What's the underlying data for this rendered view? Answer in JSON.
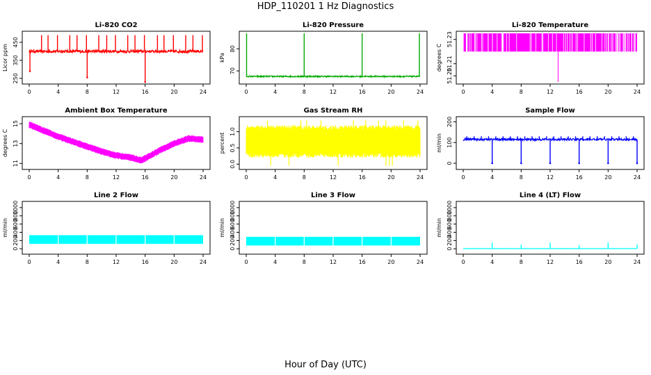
{
  "page": {
    "title": "HDP_110201  1 Hz Diagnostics",
    "xlabel": "Hour of Day (UTC)"
  },
  "chart_data": [
    {
      "type": "line",
      "title": "Li-820 CO2",
      "ylabel": "Licor ppm",
      "color": "#ff0000",
      "xticks": [
        0,
        4,
        8,
        12,
        16,
        20,
        24
      ],
      "xlim": [
        0,
        24
      ],
      "yticks": [
        250,
        350,
        450
      ],
      "ylim": [
        230,
        500
      ],
      "pattern": "baseline_with_spikes",
      "baseline": 400,
      "noise": 8,
      "spikes_up_at": [
        1.7,
        2.6,
        3.9,
        5.6,
        6.6,
        7.9,
        9.6,
        10.7,
        11.9,
        13.6,
        14.6,
        15.9,
        17.7,
        18.6,
        19.9,
        21.6,
        22.6,
        23.9
      ],
      "spikes_up_to": 490,
      "spikes_down_at": [
        0.1,
        8.0,
        16.0
      ],
      "spikes_down_to": [
        290,
        255,
        230
      ]
    },
    {
      "type": "line",
      "title": "Li-820 Pressure",
      "ylabel": "kPa",
      "color": "#00aa00",
      "xticks": [
        0,
        4,
        8,
        12,
        16,
        20,
        24
      ],
      "xlim": [
        0,
        24
      ],
      "yticks": [
        70,
        80
      ],
      "ylim": [
        65,
        87
      ],
      "pattern": "baseline_with_spikes",
      "baseline": 67.5,
      "noise": 0.3,
      "spikes_up_at": [
        0.05,
        8.0,
        16.0,
        23.9
      ],
      "spikes_up_to": 87,
      "spikes_down_at": [],
      "spikes_down_to": []
    },
    {
      "type": "line",
      "title": "Li-820 Temperature",
      "ylabel": "degrees C",
      "color": "#ff00ff",
      "xticks": [
        0,
        4,
        8,
        12,
        16,
        20,
        24
      ],
      "xlim": [
        0,
        24
      ],
      "yticks": [
        51.2,
        51.21,
        51.23
      ],
      "ytick_labels": [
        "51.20",
        "51.21",
        "51.23"
      ],
      "ylim": [
        51.195,
        51.235
      ],
      "pattern": "quantized_band",
      "band": [
        51.22,
        51.235
      ],
      "single_drop_at": 13.1,
      "single_drop_to": 51.195
    },
    {
      "type": "line",
      "title": "Ambient Box Temperature",
      "ylabel": "degrees C",
      "color": "#ff00ff",
      "xticks": [
        0,
        4,
        8,
        12,
        16,
        20,
        24
      ],
      "xlim": [
        0,
        24
      ],
      "yticks": [
        11,
        13,
        15
      ],
      "ylim": [
        10.6,
        15.5
      ],
      "pattern": "trend_band",
      "band_halfwidth": 0.35,
      "trend_x": [
        0,
        2,
        4,
        6,
        8,
        10,
        12,
        14,
        15.5,
        16,
        18,
        20,
        22,
        24
      ],
      "trend_y": [
        14.9,
        14.3,
        13.7,
        13.2,
        12.7,
        12.2,
        11.8,
        11.6,
        11.3,
        11.5,
        12.3,
        13.0,
        13.5,
        13.4
      ]
    },
    {
      "type": "line",
      "title": "Gas Stream RH",
      "ylabel": "percent",
      "color": "#ffff00",
      "xticks": [
        0,
        4,
        8,
        12,
        16,
        20,
        24
      ],
      "xlim": [
        0,
        24
      ],
      "yticks": [
        0.0,
        0.5,
        1.0
      ],
      "ytick_labels": [
        "0.0",
        "0.5",
        "1.0"
      ],
      "ylim": [
        -0.1,
        1.4
      ],
      "pattern": "noise_band",
      "band": [
        0.2,
        1.2
      ],
      "extreme": [
        -0.05,
        1.35
      ]
    },
    {
      "type": "line",
      "title": "Sample Flow",
      "ylabel": "ml/min",
      "color": "#0000ff",
      "xticks": [
        0,
        4,
        8,
        12,
        16,
        20,
        24
      ],
      "xlim": [
        0,
        24
      ],
      "yticks": [
        0,
        100,
        200
      ],
      "ylim": [
        -20,
        215
      ],
      "pattern": "baseline_with_spikes",
      "baseline": 115,
      "noise": 5,
      "spikes_up_at": [
        0.5,
        1.5,
        2.5,
        3.5,
        4.5,
        5.5,
        6.5,
        7.5,
        8.5,
        9.5,
        10.5,
        11.5,
        12.5,
        13.5,
        14.5,
        15.5,
        16.5,
        17.5,
        18.5,
        19.5,
        20.5,
        21.5,
        22.5,
        23.5
      ],
      "spikes_up_to": 130,
      "spikes_down_at": [
        4.0,
        8.0,
        12.0,
        16.0,
        20.0,
        24.0
      ],
      "spikes_down_to": [
        0,
        0,
        0,
        0,
        0,
        0
      ]
    },
    {
      "type": "line",
      "title": "Line 2 Flow",
      "ylabel": "ml/min",
      "color": "#00ffff",
      "xticks": [
        0,
        4,
        8,
        12,
        16,
        20,
        24
      ],
      "xlim": [
        0,
        24
      ],
      "yticks": [
        0,
        200,
        400,
        600,
        800,
        1000
      ],
      "ylim": [
        -80,
        1100
      ],
      "pattern": "block_band",
      "band": [
        120,
        330
      ],
      "gaps_at": [
        4.0,
        8.0,
        12.0,
        16.0,
        20.0
      ]
    },
    {
      "type": "line",
      "title": "Line 3 Flow",
      "ylabel": "ml/min",
      "color": "#00ffff",
      "xticks": [
        0,
        4,
        8,
        12,
        16,
        20,
        24
      ],
      "xlim": [
        0,
        24
      ],
      "yticks": [
        0,
        200,
        400,
        600,
        800,
        1000
      ],
      "ylim": [
        -80,
        1100
      ],
      "pattern": "block_band",
      "band": [
        80,
        290
      ],
      "gaps_at": [
        4.0,
        8.0,
        12.0,
        16.0,
        20.0
      ]
    },
    {
      "type": "line",
      "title": "Line 4 (LT) Flow",
      "ylabel": "ml/min",
      "color": "#00ffff",
      "xticks": [
        0,
        4,
        8,
        12,
        16,
        20,
        24
      ],
      "xlim": [
        0,
        24
      ],
      "yticks": [
        0,
        200,
        400,
        600,
        800,
        1000
      ],
      "ylim": [
        -80,
        1100
      ],
      "pattern": "baseline_with_spikes",
      "baseline": 5,
      "noise": 2,
      "spikes_up_at": [
        4.0,
        8.0,
        12.0,
        16.0,
        20.0,
        24.0
      ],
      "spikes_up_to": [
        150,
        100,
        150,
        90,
        150,
        100
      ],
      "spikes_down_at": [],
      "spikes_down_to": []
    }
  ]
}
